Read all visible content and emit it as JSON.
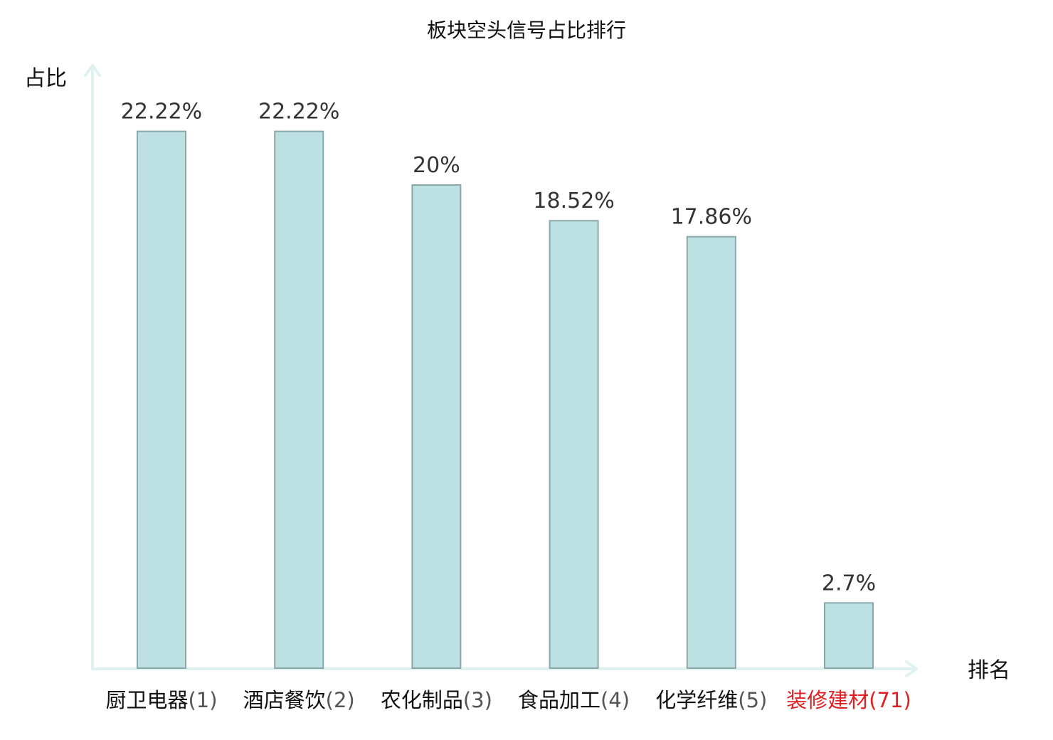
{
  "chart_data": {
    "type": "bar",
    "title": "板块空头信号占比排行",
    "ylabel": "占比",
    "xlabel": "排名",
    "ylim": [
      0,
      25
    ],
    "grid": false,
    "legend": "none",
    "categories": [
      {
        "name": "厨卫电器",
        "rank": "(1)",
        "highlight": false
      },
      {
        "name": "酒店餐饮",
        "rank": "(2)",
        "highlight": false
      },
      {
        "name": "农化制品",
        "rank": "(3)",
        "highlight": false
      },
      {
        "name": "食品加工",
        "rank": "(4)",
        "highlight": false
      },
      {
        "name": "化学纤维",
        "rank": "(5)",
        "highlight": false
      },
      {
        "name": "装修建材",
        "rank": "(71)",
        "highlight": true
      }
    ],
    "values": [
      22.22,
      22.22,
      20,
      18.52,
      17.86,
      2.7
    ],
    "value_labels": [
      "22.22%",
      "22.22%",
      "20%",
      "18.52%",
      "17.86%",
      "2.7%"
    ],
    "colors": {
      "bar_fill": "#bde1e3",
      "bar_stroke": "#8aa8aa",
      "axis": "#dff2ef",
      "highlight": "#e02020"
    }
  }
}
